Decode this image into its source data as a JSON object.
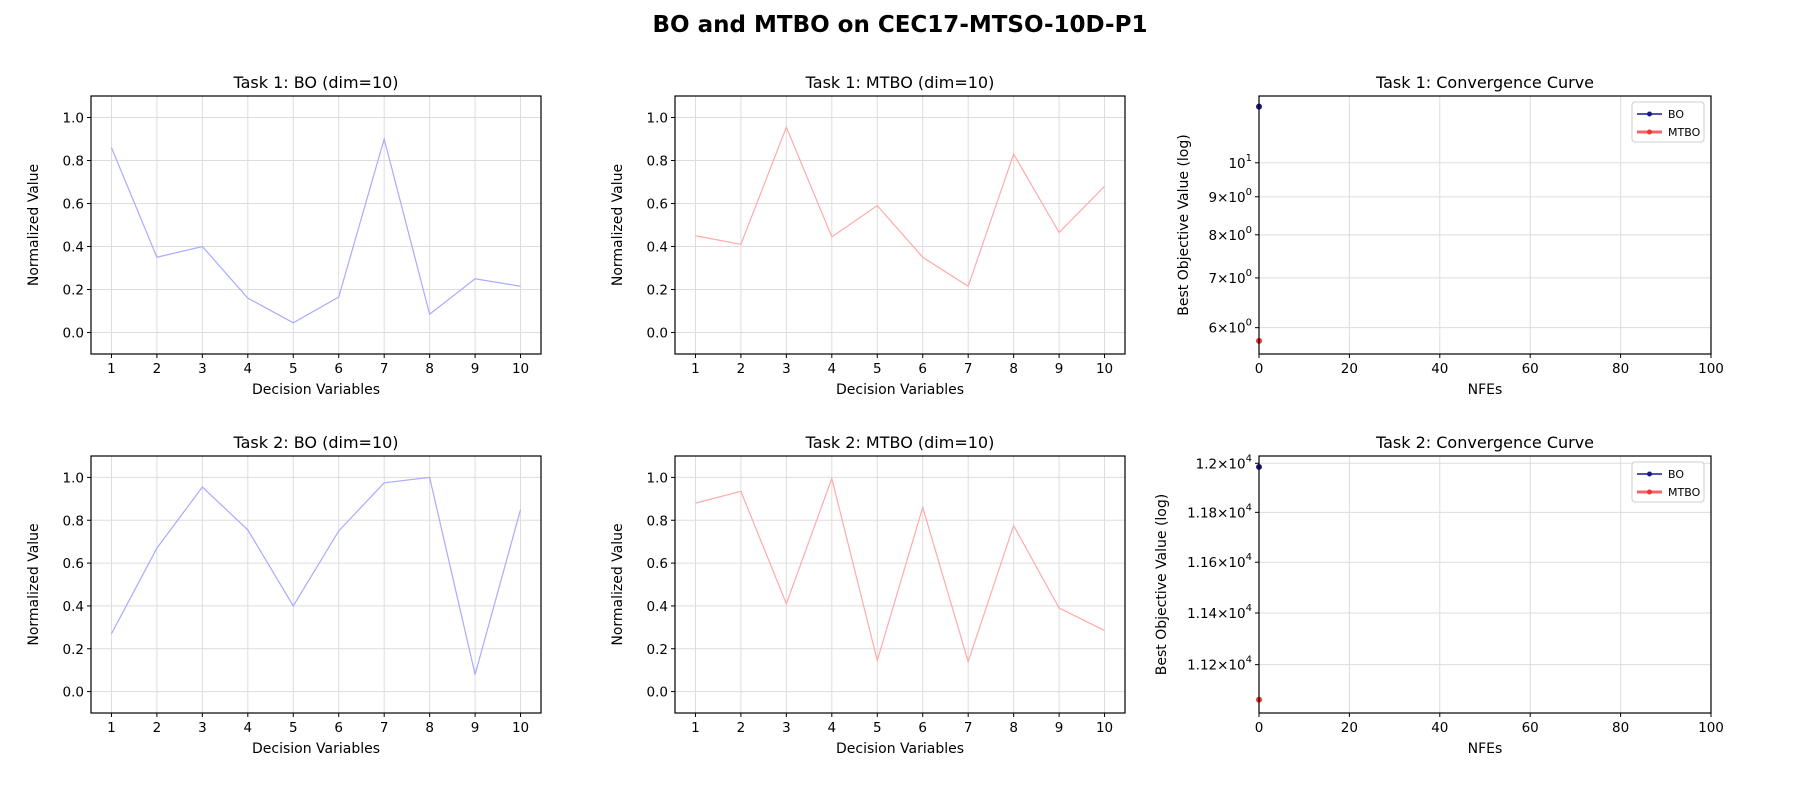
{
  "figure": {
    "title": "BO and MTBO on CEC17-MTSO-10D-P1"
  },
  "colors": {
    "bo_line": "#aaaaff",
    "mtbo_line": "#ffaaaa",
    "bo_conv": "#1a1a8c",
    "mtbo_conv": "#ee3333",
    "grid": "#dddddd"
  },
  "chart_data": [
    {
      "type": "line",
      "title": "Task 1: BO (dim=10)",
      "xlabel": "Decision Variables",
      "ylabel": "Normalized Value",
      "x": [
        1,
        2,
        3,
        4,
        5,
        6,
        7,
        8,
        9,
        10
      ],
      "xlim": [
        0.55,
        10.45
      ],
      "ylim": [
        -0.1,
        1.1
      ],
      "yticks": [
        0.0,
        0.2,
        0.4,
        0.6,
        0.8,
        1.0
      ],
      "ytick_labels": [
        "0.0",
        "0.2",
        "0.4",
        "0.6",
        "0.8",
        "1.0"
      ],
      "xtick_labels": [
        "1",
        "2",
        "3",
        "4",
        "5",
        "6",
        "7",
        "8",
        "9",
        "10"
      ],
      "grid": true,
      "series": [
        {
          "name": "BO",
          "color": "#aaaaff",
          "values": [
            0.86,
            0.35,
            0.4,
            0.16,
            0.045,
            0.165,
            0.9,
            0.085,
            0.25,
            0.215
          ]
        }
      ]
    },
    {
      "type": "line",
      "title": "Task 1: MTBO (dim=10)",
      "xlabel": "Decision Variables",
      "ylabel": "Normalized Value",
      "x": [
        1,
        2,
        3,
        4,
        5,
        6,
        7,
        8,
        9,
        10
      ],
      "xlim": [
        0.55,
        10.45
      ],
      "ylim": [
        -0.1,
        1.1
      ],
      "yticks": [
        0.0,
        0.2,
        0.4,
        0.6,
        0.8,
        1.0
      ],
      "ytick_labels": [
        "0.0",
        "0.2",
        "0.4",
        "0.6",
        "0.8",
        "1.0"
      ],
      "xtick_labels": [
        "1",
        "2",
        "3",
        "4",
        "5",
        "6",
        "7",
        "8",
        "9",
        "10"
      ],
      "grid": true,
      "series": [
        {
          "name": "MTBO",
          "color": "#ffaaaa",
          "values": [
            0.45,
            0.41,
            0.955,
            0.445,
            0.59,
            0.35,
            0.215,
            0.83,
            0.465,
            0.68
          ]
        }
      ]
    },
    {
      "type": "line",
      "title": "Task 1: Convergence Curve",
      "xlabel": "NFEs",
      "ylabel": "Best Objective Value (log)",
      "yscale": "log",
      "xlim": [
        0,
        100
      ],
      "ylim": [
        5.53,
        12.3
      ],
      "xticks": [
        0,
        20,
        40,
        60,
        80,
        100
      ],
      "xtick_labels": [
        "0",
        "20",
        "40",
        "60",
        "80",
        "100"
      ],
      "yticks": [
        6,
        7,
        8,
        9,
        10
      ],
      "ytick_labels": [
        {
          "base": "6×10",
          "exp": "0"
        },
        {
          "base": "7×10",
          "exp": "0"
        },
        {
          "base": "8×10",
          "exp": "0"
        },
        {
          "base": "9×10",
          "exp": "0"
        },
        {
          "base": "10",
          "exp": "1"
        }
      ],
      "grid": true,
      "legend": "top-right",
      "series": [
        {
          "name": "BO",
          "color": "#1a1a8c",
          "x": [
            0
          ],
          "values": [
            11.9
          ]
        },
        {
          "name": "MTBO",
          "color": "#ee3333",
          "x": [
            0
          ],
          "values": [
            5.76
          ]
        }
      ]
    },
    {
      "type": "line",
      "title": "Task 2: BO (dim=10)",
      "xlabel": "Decision Variables",
      "ylabel": "Normalized Value",
      "x": [
        1,
        2,
        3,
        4,
        5,
        6,
        7,
        8,
        9,
        10
      ],
      "xlim": [
        0.55,
        10.45
      ],
      "ylim": [
        -0.1,
        1.1
      ],
      "yticks": [
        0.0,
        0.2,
        0.4,
        0.6,
        0.8,
        1.0
      ],
      "ytick_labels": [
        "0.0",
        "0.2",
        "0.4",
        "0.6",
        "0.8",
        "1.0"
      ],
      "xtick_labels": [
        "1",
        "2",
        "3",
        "4",
        "5",
        "6",
        "7",
        "8",
        "9",
        "10"
      ],
      "grid": true,
      "series": [
        {
          "name": "BO",
          "color": "#aaaaff",
          "values": [
            0.27,
            0.67,
            0.955,
            0.755,
            0.4,
            0.75,
            0.975,
            1.0,
            0.08,
            0.85
          ]
        }
      ]
    },
    {
      "type": "line",
      "title": "Task 2: MTBO (dim=10)",
      "xlabel": "Decision Variables",
      "ylabel": "Normalized Value",
      "x": [
        1,
        2,
        3,
        4,
        5,
        6,
        7,
        8,
        9,
        10
      ],
      "xlim": [
        0.55,
        10.45
      ],
      "ylim": [
        -0.1,
        1.1
      ],
      "yticks": [
        0.0,
        0.2,
        0.4,
        0.6,
        0.8,
        1.0
      ],
      "ytick_labels": [
        "0.0",
        "0.2",
        "0.4",
        "0.6",
        "0.8",
        "1.0"
      ],
      "xtick_labels": [
        "1",
        "2",
        "3",
        "4",
        "5",
        "6",
        "7",
        "8",
        "9",
        "10"
      ],
      "grid": true,
      "series": [
        {
          "name": "MTBO",
          "color": "#ffaaaa",
          "values": [
            0.88,
            0.935,
            0.41,
            0.995,
            0.145,
            0.86,
            0.14,
            0.775,
            0.39,
            0.285
          ]
        }
      ]
    },
    {
      "type": "line",
      "title": "Task 2: Convergence Curve",
      "xlabel": "NFEs",
      "ylabel": "Best Objective Value (log)",
      "yscale": "log",
      "xlim": [
        0,
        100
      ],
      "ylim": [
        11016,
        12030
      ],
      "xticks": [
        0,
        20,
        40,
        60,
        80,
        100
      ],
      "xtick_labels": [
        "0",
        "20",
        "40",
        "60",
        "80",
        "100"
      ],
      "yticks": [
        11200,
        11400,
        11600,
        11800,
        12000
      ],
      "ytick_labels": [
        {
          "base": "1.12×10",
          "exp": "4"
        },
        {
          "base": "1.14×10",
          "exp": "4"
        },
        {
          "base": "1.16×10",
          "exp": "4"
        },
        {
          "base": "1.18×10",
          "exp": "4"
        },
        {
          "base": "1.2×10",
          "exp": "4"
        }
      ],
      "grid": true,
      "legend": "top-right",
      "series": [
        {
          "name": "BO",
          "color": "#1a1a8c",
          "x": [
            0
          ],
          "values": [
            11985
          ]
        },
        {
          "name": "MTBO",
          "color": "#ee3333",
          "x": [
            0
          ],
          "values": [
            11066
          ]
        }
      ]
    }
  ]
}
